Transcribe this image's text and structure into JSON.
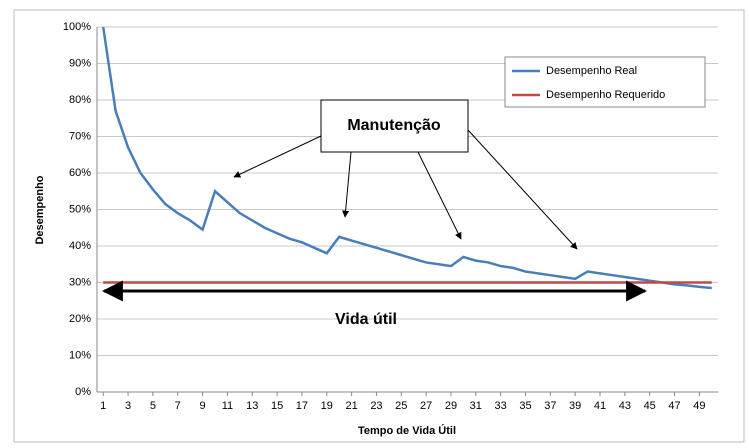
{
  "chart_data": {
    "type": "line",
    "x": [
      1,
      2,
      3,
      4,
      5,
      6,
      7,
      8,
      9,
      10,
      11,
      12,
      13,
      14,
      15,
      16,
      17,
      18,
      19,
      20,
      21,
      22,
      23,
      24,
      25,
      26,
      27,
      28,
      29,
      30,
      31,
      32,
      33,
      34,
      35,
      36,
      37,
      38,
      39,
      40,
      41,
      42,
      43,
      44,
      45,
      46,
      47,
      48,
      49,
      50
    ],
    "series": [
      {
        "name": "Desempenho Real",
        "color": "#4a7ebb",
        "values": [
          100,
          77,
          67,
          60,
          55.5,
          51.5,
          49,
          47,
          44.5,
          55,
          52,
          49,
          47,
          45,
          43.5,
          42,
          41,
          39.5,
          38,
          42.5,
          41.5,
          40.5,
          39.5,
          38.5,
          37.5,
          36.5,
          35.5,
          35,
          34.5,
          37,
          36,
          35.5,
          34.5,
          34,
          33,
          32.5,
          32,
          31.5,
          31,
          33,
          32.5,
          32,
          31.5,
          31,
          30.5,
          30,
          29.5,
          29.2,
          28.8,
          28.5
        ]
      },
      {
        "name": "Desempenho Requerido",
        "color": "#be4b48",
        "values": [
          30,
          30,
          30,
          30,
          30,
          30,
          30,
          30,
          30,
          30,
          30,
          30,
          30,
          30,
          30,
          30,
          30,
          30,
          30,
          30,
          30,
          30,
          30,
          30,
          30,
          30,
          30,
          30,
          30,
          30,
          30,
          30,
          30,
          30,
          30,
          30,
          30,
          30,
          30,
          30,
          30,
          30,
          30,
          30,
          30,
          30,
          30,
          30,
          30,
          30
        ]
      }
    ],
    "xlim": [
      0.5,
      50.5
    ],
    "xticks": [
      1,
      3,
      5,
      7,
      9,
      11,
      13,
      15,
      17,
      19,
      21,
      23,
      25,
      27,
      29,
      31,
      33,
      35,
      37,
      39,
      41,
      43,
      45,
      47,
      49
    ],
    "ylim": [
      0,
      100
    ],
    "yticks": [
      {
        "value": 0,
        "label": "0%"
      },
      {
        "value": 10,
        "label": "10%"
      },
      {
        "value": 20,
        "label": "20%"
      },
      {
        "value": 30,
        "label": "30%"
      },
      {
        "value": 40,
        "label": "40%"
      },
      {
        "value": 50,
        "label": "50%"
      },
      {
        "value": 60,
        "label": "60%"
      },
      {
        "value": 70,
        "label": "70%"
      },
      {
        "value": 80,
        "label": "80%"
      },
      {
        "value": 90,
        "label": "90%"
      },
      {
        "value": 100,
        "label": "100%"
      }
    ],
    "grid": true,
    "xlabel": "Tempo de Vida Útil",
    "ylabel": "Desempenho",
    "annotations": [
      "Manutenção",
      "Vida útil"
    ]
  }
}
